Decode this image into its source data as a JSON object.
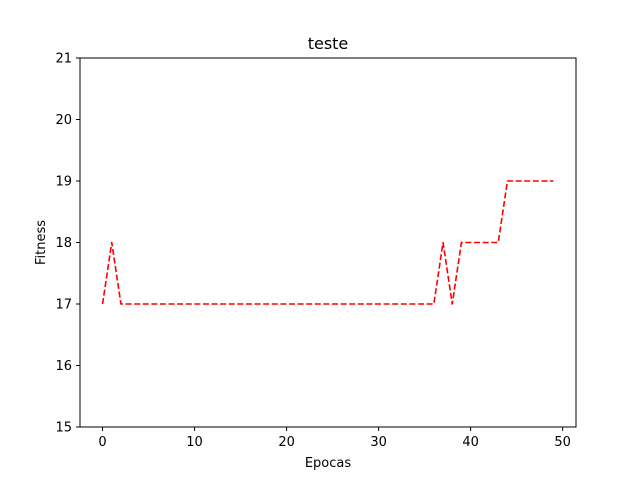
{
  "chart_data": {
    "type": "line",
    "title": "teste",
    "xlabel": "Epocas",
    "ylabel": "Fitness",
    "xlim": [
      -2.45,
      51.45
    ],
    "ylim": [
      15,
      21
    ],
    "x_ticks": [
      0,
      10,
      20,
      30,
      40,
      50
    ],
    "y_ticks": [
      15,
      16,
      17,
      18,
      19,
      20,
      21
    ],
    "x_tick_labels": [
      "0",
      "10",
      "20",
      "30",
      "40",
      "50"
    ],
    "y_tick_labels": [
      "15",
      "16",
      "17",
      "18",
      "19",
      "20",
      "21"
    ],
    "grid": false,
    "series": [
      {
        "color": "#ff0000",
        "line_style": "dashed",
        "x": [
          0,
          1,
          2,
          3,
          4,
          5,
          6,
          7,
          8,
          9,
          10,
          11,
          12,
          13,
          14,
          15,
          16,
          17,
          18,
          19,
          20,
          21,
          22,
          23,
          24,
          25,
          26,
          27,
          28,
          29,
          30,
          31,
          32,
          33,
          34,
          35,
          36,
          37,
          38,
          39,
          40,
          41,
          42,
          43,
          44,
          45,
          46,
          47,
          48,
          49
        ],
        "y": [
          17,
          18,
          17,
          17,
          17,
          17,
          17,
          17,
          17,
          17,
          17,
          17,
          17,
          17,
          17,
          17,
          17,
          17,
          17,
          17,
          17,
          17,
          17,
          17,
          17,
          17,
          17,
          17,
          17,
          17,
          17,
          17,
          17,
          17,
          17,
          17,
          17,
          18,
          17,
          18,
          18,
          18,
          18,
          18,
          19,
          19,
          19,
          19,
          19,
          19
        ]
      }
    ]
  }
}
